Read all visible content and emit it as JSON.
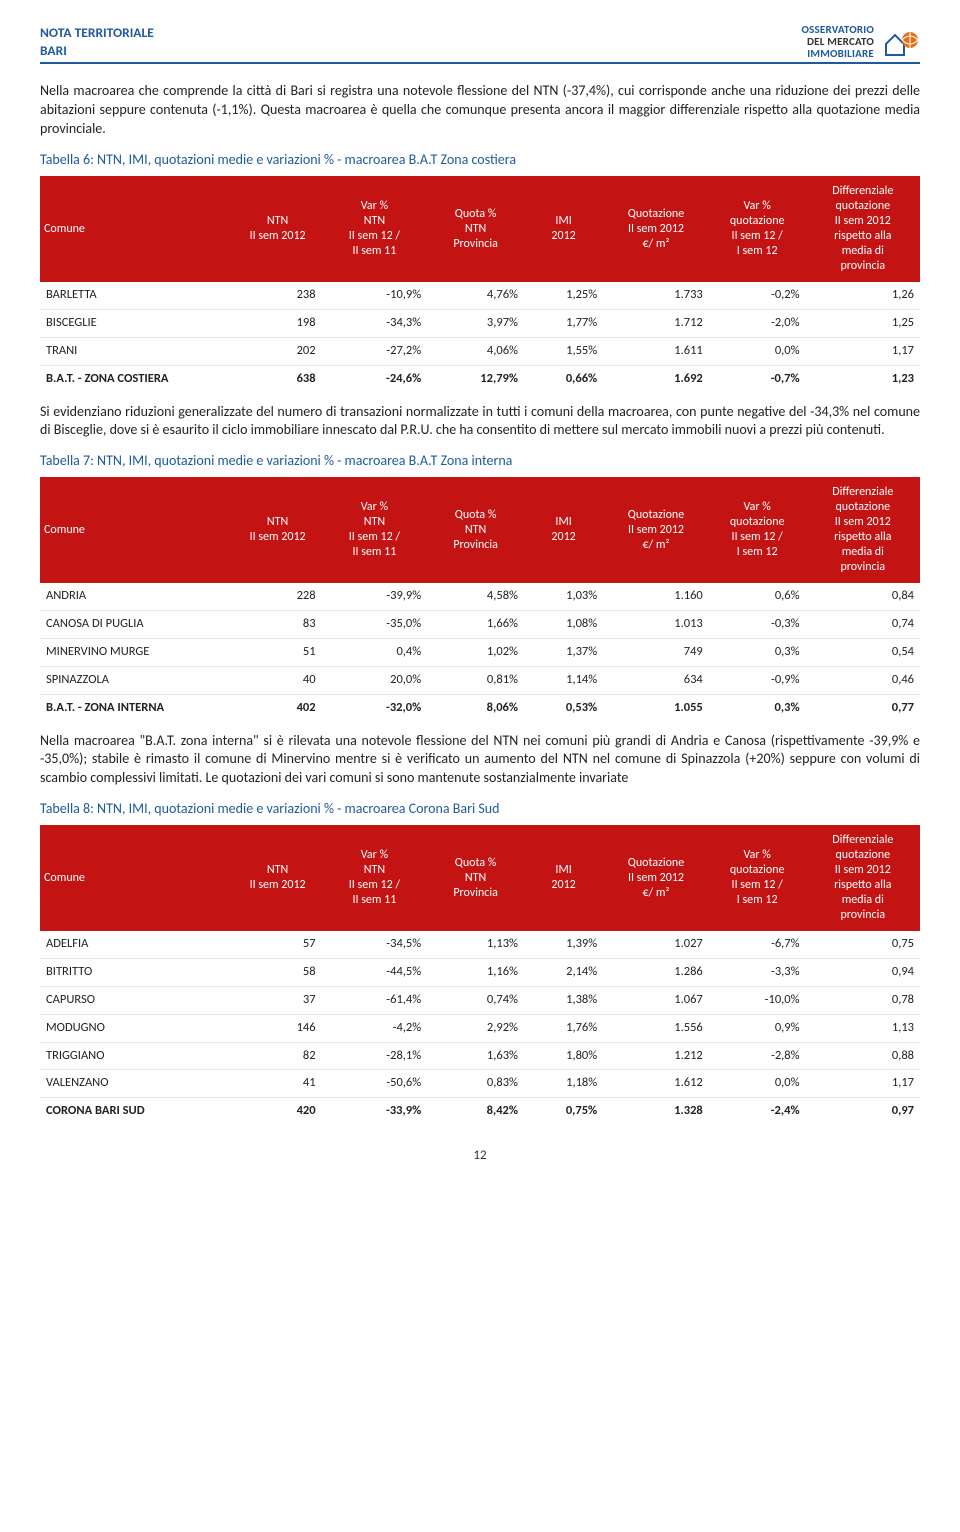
{
  "header": {
    "line1": "NOTA TERRITORIALE",
    "line2": "BARI",
    "logo_line1_a": "OSSERVATORIO",
    "logo_line1_b": "DEL MERCATO",
    "logo_line2": "IMMOBILIARE"
  },
  "colors": {
    "brand_blue": "#1f5aa0",
    "table_header_bg": "#c41313",
    "table_header_fg": "#ffffff",
    "row_border": "#e9e9e9",
    "logo_orange": "#e5701a",
    "logo_blue": "#1f5aa0"
  },
  "paragraphs": {
    "p1": "Nella macroarea che comprende la città di Bari si registra una notevole flessione del NTN (-37,4%), cui corrisponde anche una riduzione dei prezzi delle abitazioni seppure contenuta (-1,1%). Questa macroarea è quella che comunque presenta ancora il maggior differenziale rispetto alla quotazione media provinciale.",
    "p2": "Si evidenziano riduzioni generalizzate del numero di transazioni normalizzate in tutti i comuni della macroarea, con punte negative del -34,3% nel comune di Bisceglie, dove si è esaurito il ciclo immobiliare innescato dal P.R.U. che ha consentito di mettere sul mercato immobili nuovi a prezzi più contenuti.",
    "p3": "Nella macroarea \"B.A.T. zona interna\" si è rilevata una notevole flessione del NTN nei comuni più grandi di Andria e Canosa (rispettivamente -39,9% e -35,0%); stabile è rimasto il comune di Minervino mentre si è verificato un aumento del NTN nel comune di Spinazzola (+20%) seppure con volumi di scambio complessivi limitati. Le quotazioni dei vari comuni si sono mantenute sostanzialmente invariate"
  },
  "table_headers": {
    "comune": "Comune",
    "ntn": "NTN\nII sem 2012",
    "var_ntn": "Var %\nNTN\nII sem 12 /\nII sem 11",
    "quota": "Quota %\nNTN\nProvincia",
    "imi": "IMI\n2012",
    "quot": "Quotazione\nII sem 2012\n€/ m²",
    "var_quot": "Var %\nquotazione\nII sem 12 /\nI sem 12",
    "diff": "Differenziale\nquotazione\nII sem 2012\nrispetto alla\nmedia di\nprovincia"
  },
  "tables": {
    "t6": {
      "title": "Tabella 6: NTN, IMI, quotazioni medie e variazioni % - macroarea B.A.T Zona costiera",
      "rows": [
        {
          "name": "BARLETTA",
          "ntn": "238",
          "var_ntn": "-10,9%",
          "quota": "4,76%",
          "imi": "1,25%",
          "quot": "1.733",
          "var_quot": "-0,2%",
          "diff": "1,26"
        },
        {
          "name": "BISCEGLIE",
          "ntn": "198",
          "var_ntn": "-34,3%",
          "quota": "3,97%",
          "imi": "1,77%",
          "quot": "1.712",
          "var_quot": "-2,0%",
          "diff": "1,25"
        },
        {
          "name": "TRANI",
          "ntn": "202",
          "var_ntn": "-27,2%",
          "quota": "4,06%",
          "imi": "1,55%",
          "quot": "1.611",
          "var_quot": "0,0%",
          "diff": "1,17"
        }
      ],
      "total": {
        "name": "B.A.T. - ZONA COSTIERA",
        "ntn": "638",
        "var_ntn": "-24,6%",
        "quota": "12,79%",
        "imi": "0,66%",
        "quot": "1.692",
        "var_quot": "-0,7%",
        "diff": "1,23"
      }
    },
    "t7": {
      "title": "Tabella 7: NTN, IMI, quotazioni medie e variazioni % - macroarea B.A.T Zona interna",
      "rows": [
        {
          "name": "ANDRIA",
          "ntn": "228",
          "var_ntn": "-39,9%",
          "quota": "4,58%",
          "imi": "1,03%",
          "quot": "1.160",
          "var_quot": "0,6%",
          "diff": "0,84"
        },
        {
          "name": "CANOSA DI PUGLIA",
          "ntn": "83",
          "var_ntn": "-35,0%",
          "quota": "1,66%",
          "imi": "1,08%",
          "quot": "1.013",
          "var_quot": "-0,3%",
          "diff": "0,74"
        },
        {
          "name": "MINERVINO MURGE",
          "ntn": "51",
          "var_ntn": "0,4%",
          "quota": "1,02%",
          "imi": "1,37%",
          "quot": "749",
          "var_quot": "0,3%",
          "diff": "0,54"
        },
        {
          "name": "SPINAZZOLA",
          "ntn": "40",
          "var_ntn": "20,0%",
          "quota": "0,81%",
          "imi": "1,14%",
          "quot": "634",
          "var_quot": "-0,9%",
          "diff": "0,46"
        }
      ],
      "total": {
        "name": "B.A.T. - ZONA INTERNA",
        "ntn": "402",
        "var_ntn": "-32,0%",
        "quota": "8,06%",
        "imi": "0,53%",
        "quot": "1.055",
        "var_quot": "0,3%",
        "diff": "0,77"
      }
    },
    "t8": {
      "title": "Tabella 8: NTN, IMI, quotazioni medie e variazioni % - macroarea Corona Bari Sud",
      "rows": [
        {
          "name": "ADELFIA",
          "ntn": "57",
          "var_ntn": "-34,5%",
          "quota": "1,13%",
          "imi": "1,39%",
          "quot": "1.027",
          "var_quot": "-6,7%",
          "diff": "0,75"
        },
        {
          "name": "BITRITTO",
          "ntn": "58",
          "var_ntn": "-44,5%",
          "quota": "1,16%",
          "imi": "2,14%",
          "quot": "1.286",
          "var_quot": "-3,3%",
          "diff": "0,94"
        },
        {
          "name": "CAPURSO",
          "ntn": "37",
          "var_ntn": "-61,4%",
          "quota": "0,74%",
          "imi": "1,38%",
          "quot": "1.067",
          "var_quot": "-10,0%",
          "diff": "0,78"
        },
        {
          "name": "MODUGNO",
          "ntn": "146",
          "var_ntn": "-4,2%",
          "quota": "2,92%",
          "imi": "1,76%",
          "quot": "1.556",
          "var_quot": "0,9%",
          "diff": "1,13"
        },
        {
          "name": "TRIGGIANO",
          "ntn": "82",
          "var_ntn": "-28,1%",
          "quota": "1,63%",
          "imi": "1,80%",
          "quot": "1.212",
          "var_quot": "-2,8%",
          "diff": "0,88"
        },
        {
          "name": "VALENZANO",
          "ntn": "41",
          "var_ntn": "-50,6%",
          "quota": "0,83%",
          "imi": "1,18%",
          "quot": "1.612",
          "var_quot": "0,0%",
          "diff": "1,17"
        }
      ],
      "total": {
        "name": "CORONA BARI SUD",
        "ntn": "420",
        "var_ntn": "-33,9%",
        "quota": "8,42%",
        "imi": "0,75%",
        "quot": "1.328",
        "var_quot": "-2,4%",
        "diff": "0,97"
      }
    }
  },
  "col_widths": [
    "22%",
    "10%",
    "12%",
    "11%",
    "9%",
    "12%",
    "11%",
    "13%"
  ],
  "page_number": "12"
}
